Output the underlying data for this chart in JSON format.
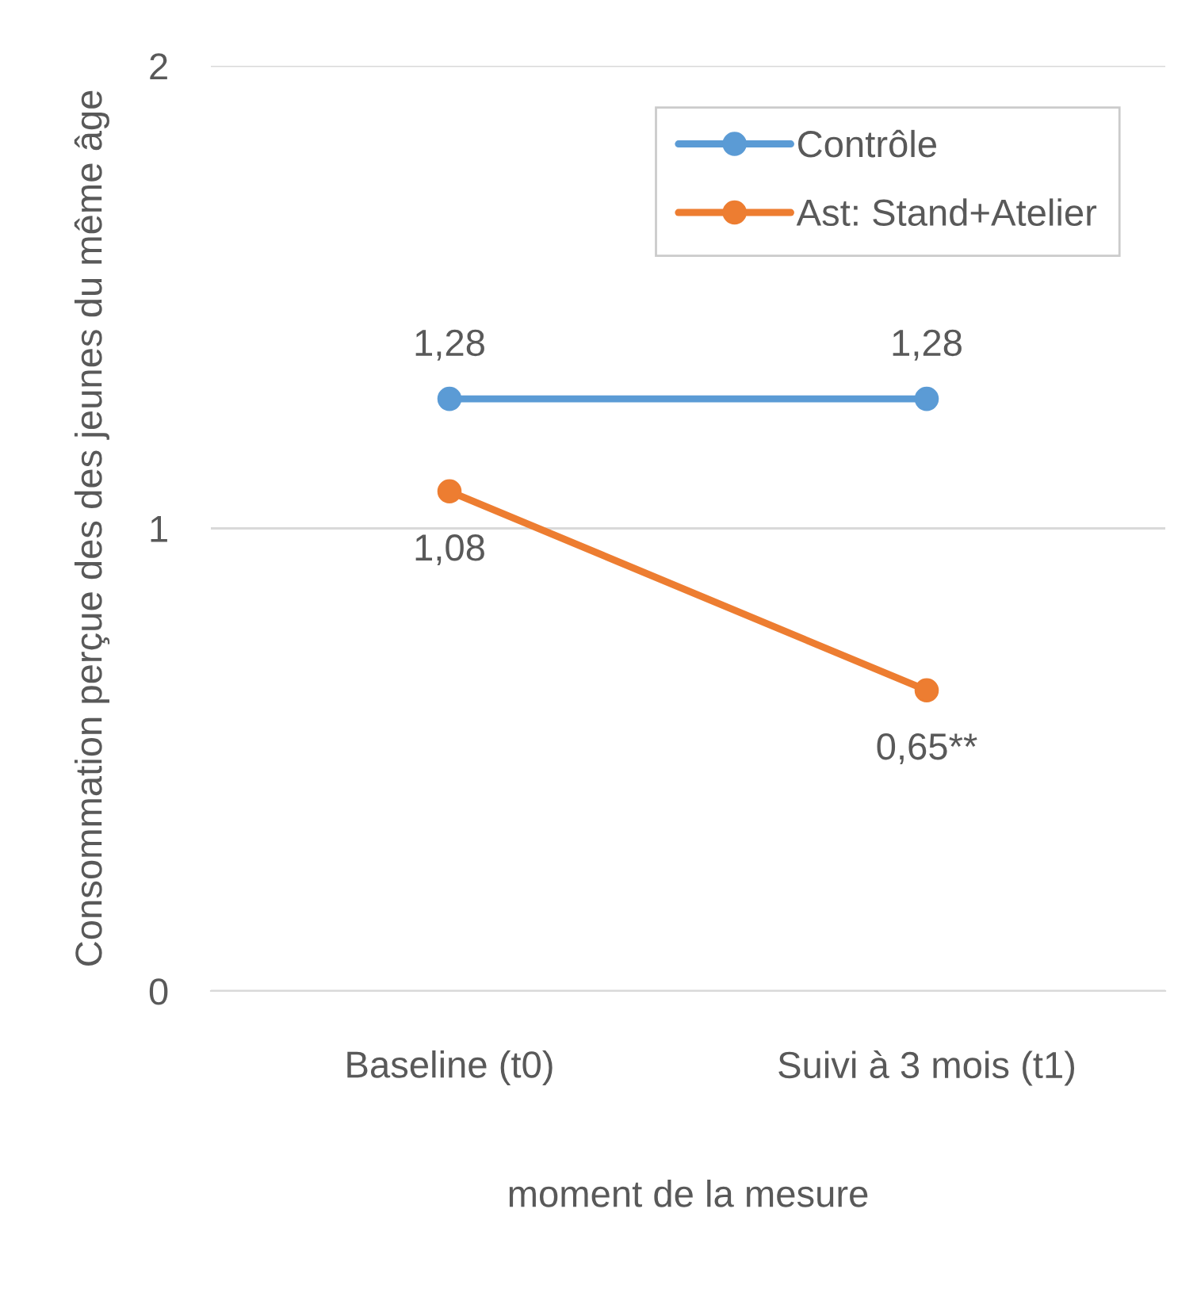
{
  "chart_data": {
    "type": "line",
    "xlabel": "moment de la mesure",
    "ylabel": "Consommation perçue des des jeunes du même âge",
    "categories": [
      "Baseline (t0)",
      "Suivi à 3 mois (t1)"
    ],
    "series": [
      {
        "name": "Contrôle",
        "color": "#5b9bd5",
        "values": [
          1.28,
          1.28
        ],
        "value_labels": [
          "1,28",
          "1,28"
        ]
      },
      {
        "name": "Ast: Stand+Atelier",
        "color": "#ed7d31",
        "values": [
          1.08,
          0.65
        ],
        "value_labels": [
          "1,08",
          "0,65**"
        ]
      }
    ],
    "ylim": [
      0,
      2
    ],
    "yticks": [
      0,
      1,
      2
    ],
    "grid": "y",
    "legend": "top right",
    "marker": "circle",
    "line_style": "solid"
  }
}
